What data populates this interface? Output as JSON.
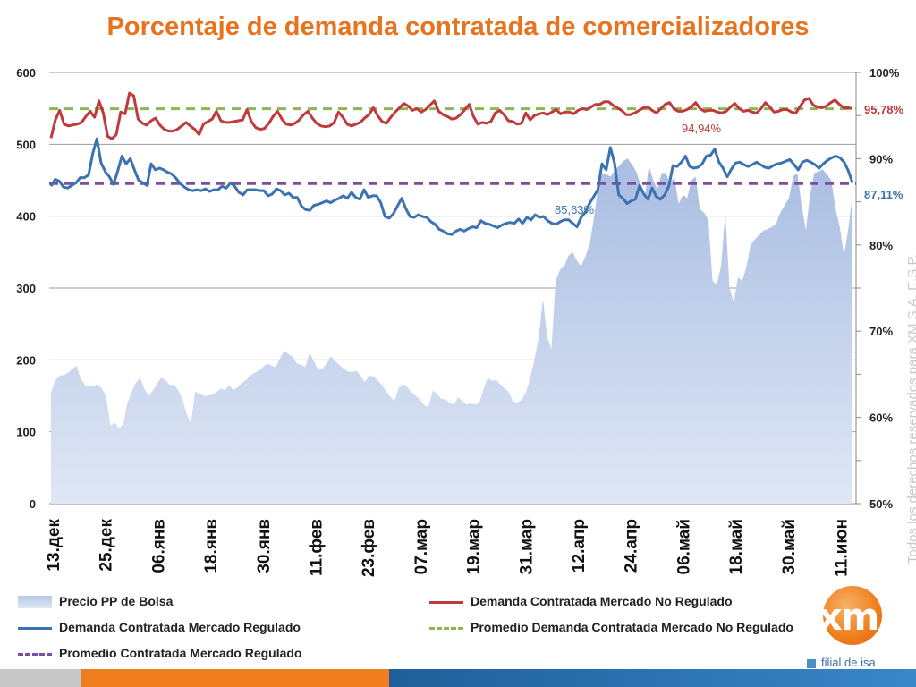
{
  "title": "Porcentaje de demanda contratada de comercializadores",
  "watermark": "Todos los derechos reservados para XM S.A. E.S.P.",
  "logo": {
    "text": "xm",
    "subtitle": "filial de isa"
  },
  "legend": [
    {
      "label": "Precio PP de Bolsa",
      "style": "area",
      "color": "#b7c8e6"
    },
    {
      "label": "Demanda Contratada Mercado No Regulado",
      "style": "line",
      "color": "#c0393b"
    },
    {
      "label": "Demanda Contratada Mercado Regulado",
      "style": "line",
      "color": "#3b72b1"
    },
    {
      "label": "Promedio Demanda Contratada Mercado No Regulado",
      "style": "dash",
      "color": "#8db652"
    },
    {
      "label": "Promedio Contratada Mercado Regulado",
      "style": "dash",
      "color": "#7b4f9e"
    }
  ],
  "chart_data": {
    "type": "line",
    "title": "Porcentaje de demanda contratada de comercializadores",
    "x_ticks": [
      "13.дек",
      "25.дек",
      "06.янв",
      "18.янв",
      "30.янв",
      "11.фев",
      "23.фев",
      "07.мар",
      "19.мар",
      "31.мар",
      "12.апр",
      "24.апр",
      "06.май",
      "18.май",
      "30.май",
      "11.июн"
    ],
    "y_left": {
      "ylim": [
        0,
        600
      ],
      "ticks": [
        "0",
        "100",
        "200",
        "300",
        "400",
        "500",
        "600"
      ]
    },
    "y_right": {
      "ylim": [
        50,
        100
      ],
      "ticks": [
        "50%",
        "60%",
        "70%",
        "80%",
        "90%",
        "100%"
      ]
    },
    "grid": true,
    "annotations": [
      {
        "text": "95,78%",
        "color": "#c0393b",
        "series": "Demanda Contratada Mercado No Regulado"
      },
      {
        "text": "94,94%",
        "color": "#c0393b",
        "series": "Demanda Contratada Mercado No Regulado"
      },
      {
        "text": "87,11%",
        "color": "#3b72b1",
        "series": "Demanda Contratada Mercado Regulado"
      },
      {
        "text": "85,63%",
        "color": "#3b72b1",
        "series": "Demanda Contratada Mercado Regulado"
      }
    ],
    "series": [
      {
        "name": "Precio PP de Bolsa",
        "axis": "left",
        "type": "area",
        "color": "#b7c8e6",
        "values": [
          154,
          171,
          178,
          179,
          182,
          187,
          192,
          174,
          165,
          163,
          164,
          166,
          160,
          150,
          108,
          113,
          105,
          110,
          140,
          155,
          168,
          175,
          160,
          150,
          157,
          167,
          175,
          172,
          165,
          166,
          158,
          145,
          125,
          112,
          156,
          153,
          150,
          150,
          152,
          155,
          160,
          158,
          165,
          158,
          162,
          168,
          172,
          178,
          182,
          185,
          190,
          195,
          192,
          190,
          202,
          213,
          208,
          204,
          195,
          193,
          190,
          210,
          198,
          186,
          188,
          195,
          205,
          198,
          193,
          188,
          184,
          183,
          185,
          178,
          169,
          178,
          177,
          172,
          165,
          157,
          149,
          143,
          161,
          167,
          162,
          155,
          150,
          145,
          137,
          134,
          157,
          153,
          146,
          145,
          140,
          138,
          148,
          143,
          138,
          139,
          138,
          140,
          160,
          175,
          171,
          172,
          166,
          160,
          155,
          142,
          141,
          145,
          155,
          175,
          200,
          230,
          285,
          232,
          215,
          310,
          325,
          330,
          345,
          350,
          338,
          330,
          344,
          360,
          396,
          440,
          460,
          458,
          455,
          465,
          470,
          477,
          480,
          472,
          462,
          445,
          425,
          470,
          450,
          437,
          460,
          460,
          445,
          455,
          417,
          430,
          425,
          450,
          455,
          410,
          405,
          395,
          310,
          305,
          330,
          405,
          300,
          280,
          315,
          310,
          330,
          360,
          368,
          374,
          380,
          382,
          385,
          390,
          405,
          415,
          425,
          455,
          460,
          415,
          380,
          430,
          460,
          462,
          465,
          458,
          450,
          410,
          385,
          345,
          382,
          430
        ]
      },
      {
        "name": "Demanda Contratada Mercado No Regulado",
        "axis": "right",
        "type": "line",
        "color": "#c0393b",
        "values": [
          92.4,
          94.5,
          95.6,
          94.0,
          93.8,
          93.9,
          94.0,
          94.2,
          94.9,
          95.5,
          94.8,
          96.7,
          95.3,
          92.6,
          92.3,
          92.8,
          95.4,
          95.2,
          97.6,
          97.3,
          94.6,
          94.1,
          93.9,
          94.4,
          94.7,
          93.9,
          93.4,
          93.2,
          93.2,
          93.4,
          93.8,
          94.2,
          93.8,
          93.4,
          92.8,
          94.0,
          94.3,
          94.6,
          95.5,
          94.4,
          94.2,
          94.2,
          94.3,
          94.4,
          94.5,
          95.7,
          94.3,
          93.6,
          93.4,
          93.5,
          94.1,
          94.9,
          95.5,
          94.6,
          94.0,
          93.9,
          94.1,
          94.5,
          95.1,
          95.5,
          94.7,
          94.1,
          93.8,
          93.7,
          93.8,
          94.2,
          95.4,
          94.8,
          94.0,
          93.8,
          94.0,
          94.2,
          94.7,
          95.1,
          95.9,
          95.0,
          94.3,
          94.1,
          94.8,
          95.4,
          95.9,
          96.4,
          96.1,
          95.6,
          95.8,
          95.4,
          95.7,
          96.2,
          96.7,
          95.5,
          95.1,
          94.9,
          94.6,
          94.7,
          95.1,
          95.7,
          96.3,
          94.9,
          94.0,
          94.2,
          94.1,
          94.3,
          95.3,
          95.6,
          95.1,
          94.4,
          94.3,
          94.0,
          94.1,
          95.3,
          94.5,
          95.0,
          95.2,
          95.3,
          95.1,
          95.4,
          95.7,
          95.2,
          95.4,
          95.4,
          95.2,
          95.6,
          95.8,
          95.7,
          96.0,
          96.3,
          96.3,
          96.6,
          96.6,
          96.2,
          95.9,
          95.6,
          95.1,
          95.1,
          95.3,
          95.6,
          95.9,
          96.0,
          95.6,
          95.3,
          95.8,
          96.3,
          96.5,
          95.8,
          95.5,
          95.5,
          95.7,
          96.0,
          96.5,
          95.8,
          95.5,
          95.6,
          95.6,
          95.4,
          95.3,
          95.5,
          96.0,
          96.4,
          95.8,
          95.5,
          95.6,
          95.4,
          95.3,
          95.8,
          96.5,
          96.0,
          95.4,
          95.5,
          95.7,
          95.7,
          95.4,
          95.3,
          96.1,
          96.8,
          97.0,
          96.2,
          96.0,
          95.9,
          96.1,
          96.5,
          96.8,
          96.3,
          95.9,
          95.9,
          95.8
        ]
      },
      {
        "name": "Demanda Contratada Mercado Regulado",
        "axis": "right",
        "type": "line",
        "color": "#3b72b1",
        "values": [
          86.8,
          87.6,
          87.4,
          86.7,
          86.6,
          86.9,
          87.2,
          87.8,
          87.8,
          88.1,
          90.6,
          92.3,
          89.5,
          88.5,
          87.9,
          87.0,
          88.6,
          90.3,
          89.4,
          90.0,
          88.7,
          87.5,
          87.2,
          86.9,
          89.4,
          88.7,
          88.9,
          88.7,
          88.4,
          88.2,
          87.7,
          87.1,
          86.7,
          86.4,
          86.3,
          86.4,
          86.3,
          86.5,
          86.2,
          86.4,
          86.4,
          86.8,
          86.6,
          87.2,
          86.8,
          86.1,
          85.8,
          86.4,
          86.4,
          86.4,
          86.3,
          86.3,
          85.7,
          85.9,
          86.5,
          86.3,
          85.8,
          86.0,
          85.5,
          85.5,
          84.5,
          84.1,
          84.0,
          84.6,
          84.7,
          84.9,
          85.1,
          84.9,
          85.2,
          85.4,
          85.7,
          85.4,
          86.1,
          85.5,
          85.3,
          86.4,
          85.5,
          85.7,
          85.7,
          84.9,
          83.3,
          83.1,
          83.6,
          84.5,
          85.4,
          84.2,
          83.3,
          83.2,
          83.5,
          83.3,
          83.2,
          82.7,
          82.4,
          81.8,
          81.6,
          81.3,
          81.2,
          81.6,
          81.8,
          81.6,
          81.9,
          82.1,
          82.0,
          82.8,
          82.5,
          82.4,
          82.2,
          82.0,
          82.3,
          82.5,
          82.6,
          82.5,
          83.0,
          82.5,
          83.2,
          82.9,
          83.5,
          83.2,
          83.3,
          82.8,
          82.5,
          82.4,
          82.7,
          82.9,
          82.9,
          82.5,
          82.1,
          83.2,
          83.8,
          84.8,
          85.6,
          86.4,
          89.4,
          88.7,
          91.3,
          89.5,
          85.8,
          85.4,
          84.8,
          85.1,
          85.3,
          86.9,
          85.9,
          85.3,
          86.6,
          85.6,
          85.3,
          85.8,
          86.8,
          89.2,
          89.1,
          89.6,
          90.3,
          89.1,
          88.9,
          89.0,
          89.4,
          90.3,
          90.4,
          91.1,
          89.6,
          88.9,
          87.9,
          88.8,
          89.5,
          89.6,
          89.3,
          89.1,
          89.3,
          89.6,
          89.3,
          89.0,
          88.9,
          89.2,
          89.4,
          89.5,
          89.7,
          89.9,
          89.3,
          88.7,
          89.6,
          89.8,
          89.6,
          89.3,
          88.9,
          89.4,
          89.8,
          90.1,
          90.3,
          90.1,
          89.6,
          88.6,
          87.2
        ]
      },
      {
        "name": "Promedio Demanda Contratada Mercado No Regulado",
        "axis": "right",
        "type": "dash",
        "color": "#8db652",
        "values": [
          95.78
        ]
      },
      {
        "name": "Promedio Contratada Mercado Regulado",
        "axis": "right",
        "type": "dash",
        "color": "#7b4f9e",
        "values": [
          87.11
        ]
      }
    ]
  }
}
